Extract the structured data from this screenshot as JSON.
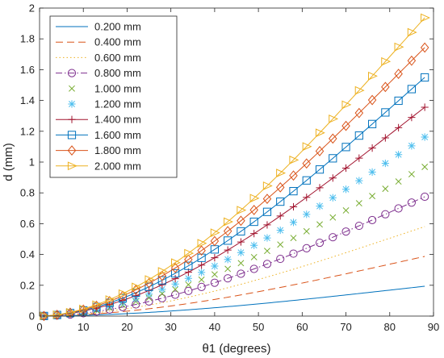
{
  "chart_data": {
    "type": "line",
    "title": "",
    "xlabel": "θ1 (degrees)",
    "ylabel": "d (mm)",
    "xlim": [
      0,
      90
    ],
    "ylim": [
      0,
      2
    ],
    "xticks": [
      0,
      10,
      20,
      30,
      40,
      50,
      60,
      70,
      80,
      90
    ],
    "yticks": [
      0,
      0.2,
      0.4,
      0.6,
      0.8,
      1,
      1.2,
      1.4,
      1.6,
      1.8,
      2
    ],
    "ytick_labels": [
      "0",
      "0.2",
      "0.4",
      "0.6",
      "0.8",
      "1",
      "1.2",
      "1.4",
      "1.6",
      "1.8",
      "2"
    ],
    "grid": false,
    "legend_position": "top-left",
    "x": [
      1,
      4,
      7,
      10,
      13,
      16,
      19,
      22,
      25,
      28,
      31,
      34,
      37,
      40,
      43,
      46,
      49,
      52,
      55,
      58,
      61,
      64,
      67,
      70,
      73,
      76,
      79,
      82,
      85,
      88
    ],
    "curve_model": "d = scale × (1 − cos θ1)^0.9",
    "series": [
      {
        "name": "0.200 mm",
        "color": "#0072BD",
        "line": "solid",
        "marker": "none",
        "scale": 0.2
      },
      {
        "name": "0.400 mm",
        "color": "#D95319",
        "line": "dashed",
        "marker": "none",
        "scale": 0.4
      },
      {
        "name": "0.600 mm",
        "color": "#EDB120",
        "line": "dotted",
        "marker": "none",
        "scale": 0.6
      },
      {
        "name": "0.800 mm",
        "color": "#7E2F8E",
        "line": "dashdot",
        "marker": "circle",
        "scale": 0.8
      },
      {
        "name": "1.000 mm",
        "color": "#77AC30",
        "line": "none",
        "marker": "x",
        "scale": 1.0
      },
      {
        "name": "1.200 mm",
        "color": "#4DBEEE",
        "line": "none",
        "marker": "asterisk",
        "scale": 1.2
      },
      {
        "name": "1.400 mm",
        "color": "#A2142F",
        "line": "solid",
        "marker": "plus",
        "scale": 1.4
      },
      {
        "name": "1.600 mm",
        "color": "#0072BD",
        "line": "solid",
        "marker": "square",
        "scale": 1.6
      },
      {
        "name": "1.800 mm",
        "color": "#D95319",
        "line": "solid",
        "marker": "diamond",
        "scale": 1.8
      },
      {
        "name": "2.000 mm",
        "color": "#EDB120",
        "line": "solid",
        "marker": "triangle-right",
        "scale": 2.0
      }
    ]
  }
}
